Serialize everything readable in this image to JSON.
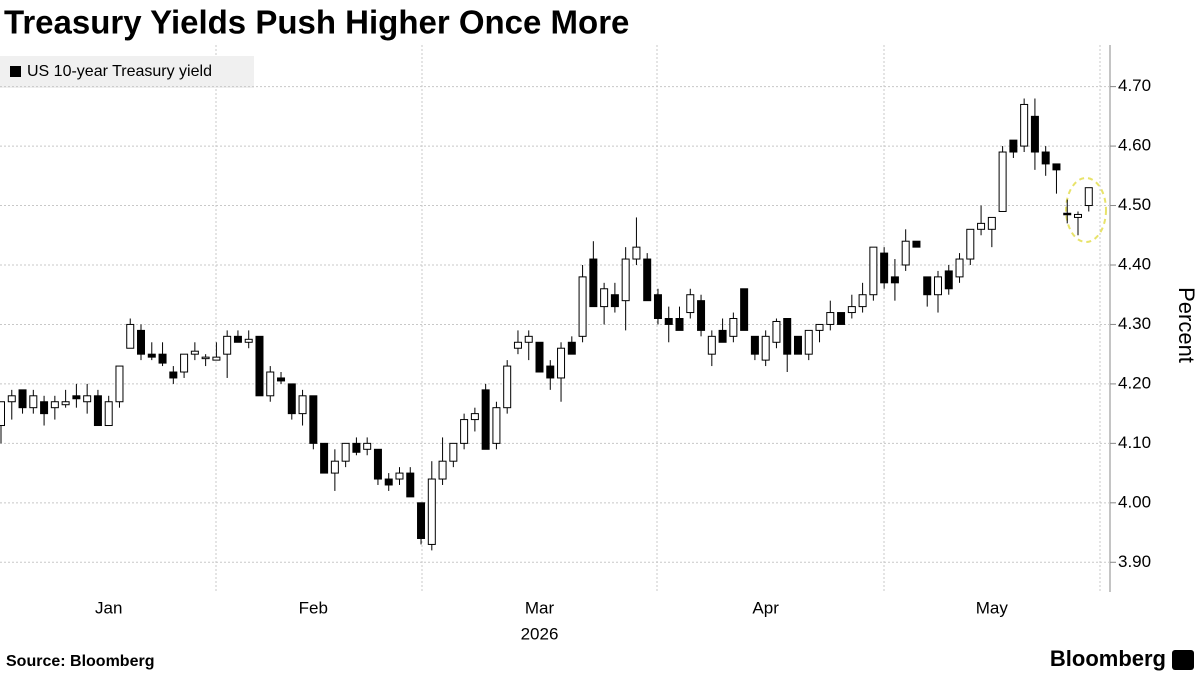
{
  "chart_data": {
    "type": "candlestick",
    "title": "Treasury Yields Push Higher Once More",
    "ylabel": "Percent",
    "x_label": "2026",
    "source": "Source: Bloomberg",
    "brand": "Bloomberg",
    "categories": [
      null,
      null,
      null,
      null,
      null,
      null,
      null,
      null,
      null,
      null,
      "Jan",
      null,
      null,
      null,
      null,
      null,
      null,
      null,
      null,
      null,
      null,
      null,
      null,
      null,
      null,
      null,
      null,
      null,
      null,
      "Feb",
      null,
      null,
      null,
      null,
      null,
      null,
      null,
      null,
      null,
      null,
      null,
      null,
      null,
      null,
      null,
      null,
      null,
      null,
      null,
      null,
      "Mar",
      null,
      null,
      null,
      null,
      null,
      null,
      null,
      null,
      null,
      null,
      null,
      null,
      null,
      null,
      null,
      null,
      null,
      null,
      null,
      null,
      "Apr",
      null,
      null,
      null,
      null,
      null,
      null,
      null,
      null,
      null,
      null,
      null,
      null,
      null,
      null,
      null,
      null,
      null,
      null,
      null,
      null,
      "May",
      null,
      null,
      null,
      null,
      null,
      null,
      null,
      null,
      null
    ],
    "series": [
      {
        "name": "US 10-year Treasury yield",
        "color": "#000000",
        "open": [
          4.13,
          4.17,
          4.19,
          4.16,
          4.17,
          4.16,
          4.165,
          4.18,
          4.17,
          4.18,
          4.13,
          4.17,
          4.26,
          4.29,
          4.25,
          4.25,
          4.22,
          4.22,
          4.25,
          4.245,
          4.24,
          4.25,
          4.28,
          4.27,
          4.28,
          4.18,
          4.21,
          4.2,
          4.15,
          4.18,
          4.1,
          4.05,
          4.07,
          4.1,
          4.09,
          4.09,
          4.04,
          4.04,
          4.05,
          4.0,
          3.93,
          4.04,
          4.07,
          4.1,
          4.14,
          4.19,
          4.1,
          4.16,
          4.26,
          4.27,
          4.27,
          4.23,
          4.21,
          4.27,
          4.28,
          4.41,
          4.33,
          4.35,
          4.34,
          4.41,
          4.41,
          4.35,
          4.31,
          4.31,
          4.32,
          4.34,
          4.25,
          4.29,
          4.28,
          4.36,
          4.28,
          4.24,
          4.27,
          4.31,
          4.28,
          4.25,
          4.29,
          4.3,
          4.32,
          4.32,
          4.33,
          4.35,
          4.42,
          4.38,
          4.4,
          4.44,
          4.38,
          4.35,
          4.39,
          4.38,
          4.41,
          4.46,
          4.46,
          4.49,
          4.61,
          4.6,
          4.65,
          4.59,
          4.57,
          4.487,
          4.48,
          4.5
        ],
        "high": [
          4.17,
          4.19,
          4.19,
          4.19,
          4.18,
          4.18,
          4.19,
          4.2,
          4.2,
          4.19,
          4.18,
          4.23,
          4.31,
          4.3,
          4.27,
          4.27,
          4.23,
          4.25,
          4.27,
          4.25,
          4.27,
          4.29,
          4.29,
          4.29,
          4.28,
          4.23,
          4.22,
          4.2,
          4.19,
          4.18,
          4.1,
          4.09,
          4.1,
          4.11,
          4.11,
          4.09,
          4.05,
          4.06,
          4.06,
          4.0,
          4.07,
          4.11,
          4.1,
          4.15,
          4.16,
          4.2,
          4.17,
          4.24,
          4.29,
          4.29,
          4.27,
          4.24,
          4.27,
          4.28,
          4.4,
          4.44,
          4.37,
          4.37,
          4.43,
          4.48,
          4.42,
          4.36,
          4.33,
          4.33,
          4.36,
          4.35,
          4.29,
          4.31,
          4.32,
          4.36,
          4.28,
          4.29,
          4.31,
          4.31,
          4.28,
          4.29,
          4.3,
          4.34,
          4.32,
          4.35,
          4.37,
          4.43,
          4.43,
          4.41,
          4.46,
          4.44,
          4.38,
          4.39,
          4.4,
          4.42,
          4.46,
          4.5,
          4.48,
          4.6,
          4.61,
          4.68,
          4.68,
          4.6,
          4.57,
          4.51,
          4.49,
          4.53
        ],
        "low": [
          4.1,
          4.14,
          4.15,
          4.15,
          4.13,
          4.14,
          4.16,
          4.16,
          4.15,
          4.13,
          4.13,
          4.16,
          4.26,
          4.24,
          4.24,
          4.23,
          4.2,
          4.21,
          4.24,
          4.23,
          4.24,
          4.21,
          4.27,
          4.26,
          4.18,
          4.17,
          4.2,
          4.14,
          4.13,
          4.09,
          4.05,
          4.02,
          4.06,
          4.08,
          4.08,
          4.03,
          4.02,
          4.03,
          4.01,
          3.93,
          3.92,
          4.03,
          4.06,
          4.09,
          4.12,
          4.09,
          4.09,
          4.15,
          4.25,
          4.24,
          4.22,
          4.19,
          4.17,
          4.25,
          4.27,
          4.33,
          4.3,
          4.32,
          4.29,
          4.4,
          4.34,
          4.3,
          4.27,
          4.29,
          4.31,
          4.28,
          4.23,
          4.27,
          4.27,
          4.29,
          4.24,
          4.23,
          4.26,
          4.22,
          4.25,
          4.24,
          4.27,
          4.29,
          4.3,
          4.31,
          4.32,
          4.34,
          4.36,
          4.34,
          4.39,
          4.43,
          4.33,
          4.32,
          4.35,
          4.37,
          4.4,
          4.45,
          4.43,
          4.49,
          4.58,
          4.59,
          4.56,
          4.55,
          4.52,
          4.47,
          4.45,
          4.49
        ],
        "close": [
          4.17,
          4.18,
          4.16,
          4.18,
          4.15,
          4.17,
          4.17,
          4.175,
          4.18,
          4.13,
          4.17,
          4.23,
          4.3,
          4.25,
          4.245,
          4.235,
          4.21,
          4.25,
          4.255,
          4.245,
          4.245,
          4.28,
          4.27,
          4.275,
          4.18,
          4.22,
          4.205,
          4.15,
          4.18,
          4.1,
          4.05,
          4.07,
          4.1,
          4.085,
          4.1,
          4.04,
          4.03,
          4.05,
          4.01,
          3.94,
          4.04,
          4.07,
          4.1,
          4.14,
          4.15,
          4.09,
          4.16,
          4.23,
          4.27,
          4.28,
          4.22,
          4.21,
          4.26,
          4.25,
          4.38,
          4.33,
          4.36,
          4.33,
          4.41,
          4.43,
          4.34,
          4.31,
          4.3,
          4.29,
          4.35,
          4.29,
          4.28,
          4.27,
          4.31,
          4.29,
          4.25,
          4.28,
          4.305,
          4.25,
          4.25,
          4.29,
          4.3,
          4.32,
          4.3,
          4.33,
          4.35,
          4.43,
          4.37,
          4.37,
          4.44,
          4.43,
          4.35,
          4.38,
          4.36,
          4.41,
          4.46,
          4.47,
          4.48,
          4.59,
          4.59,
          4.67,
          4.59,
          4.57,
          4.56,
          4.485,
          4.485,
          4.53
        ]
      }
    ],
    "ylim": [
      3.85,
      4.77
    ],
    "yticks": [
      {
        "value": 3.9,
        "label": "3.90"
      },
      {
        "value": 4.0,
        "label": "4.00"
      },
      {
        "value": 4.1,
        "label": "4.10"
      },
      {
        "value": 4.2,
        "label": "4.20"
      },
      {
        "value": 4.3,
        "label": "4.30"
      },
      {
        "value": 4.4,
        "label": "4.40"
      },
      {
        "value": 4.5,
        "label": "4.50"
      },
      {
        "value": 4.6,
        "label": "4.60"
      },
      {
        "value": 4.7,
        "label": "4.70"
      }
    ],
    "grid": true
  }
}
